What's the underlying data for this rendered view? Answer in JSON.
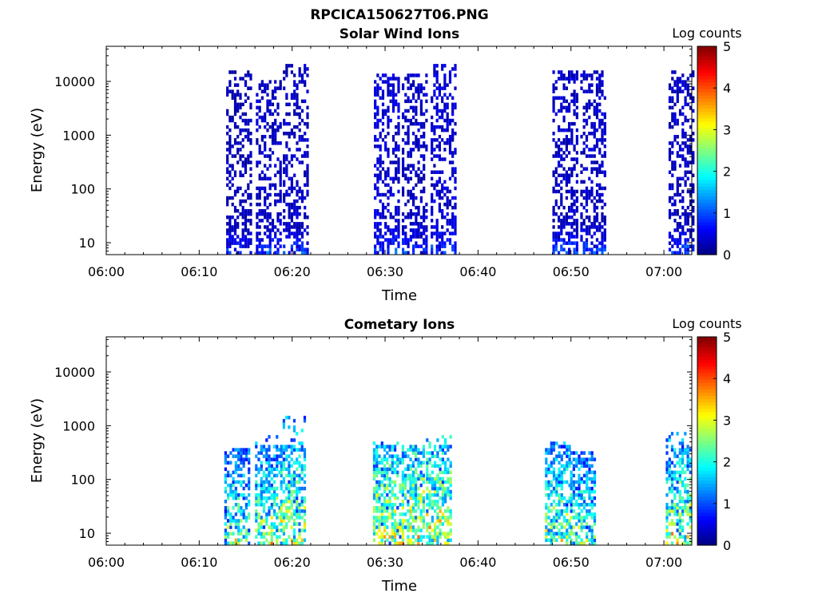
{
  "figure": {
    "title": "RPCICA150627T06.PNG"
  },
  "colormap": [
    "#00007f",
    "#0000ff",
    "#007fff",
    "#00ffff",
    "#7fff7f",
    "#ffff00",
    "#ff7f00",
    "#ff0000",
    "#7f0000"
  ],
  "chart_data": [
    {
      "type": "heatmap",
      "title": "Solar Wind Ions",
      "xlabel": "Time",
      "ylabel": "Energy (eV)",
      "x_ticks": [
        "06:00",
        "06:10",
        "06:20",
        "06:30",
        "06:40",
        "06:50",
        "07:00"
      ],
      "x_range_minutes": [
        0,
        63
      ],
      "y_scale": "log",
      "y_ticks": [
        "10",
        "100",
        "1000",
        "10000"
      ],
      "y_range": [
        6,
        45000
      ],
      "colorbar": {
        "label": "Log counts",
        "ticks": [
          "0",
          "1",
          "2",
          "3",
          "4",
          "5"
        ],
        "range": [
          0,
          5
        ]
      },
      "bursts": [
        {
          "t": 14.2,
          "emax": 15000,
          "level": 0.4
        },
        {
          "t": 17.4,
          "emax": 10000,
          "level": 0.5
        },
        {
          "t": 20.3,
          "emax": 20000,
          "level": 0.5
        },
        {
          "t": 30.1,
          "emax": 12000,
          "level": 0.6
        },
        {
          "t": 33.1,
          "emax": 12000,
          "level": 0.5
        },
        {
          "t": 36.2,
          "emax": 20000,
          "level": 0.6
        },
        {
          "t": 49.3,
          "emax": 15000,
          "level": 0.5
        },
        {
          "t": 52.3,
          "emax": 15000,
          "level": 0.5
        },
        {
          "t": 61.8,
          "emax": 15000,
          "level": 0.5
        }
      ]
    },
    {
      "type": "heatmap",
      "title": "Cometary Ions",
      "xlabel": "Time",
      "ylabel": "Energy (eV)",
      "x_ticks": [
        "06:00",
        "06:10",
        "06:20",
        "06:30",
        "06:40",
        "06:50",
        "07:00"
      ],
      "x_range_minutes": [
        0,
        63
      ],
      "y_scale": "log",
      "y_ticks": [
        "10",
        "100",
        "1000",
        "10000"
      ],
      "y_range": [
        6,
        45000
      ],
      "colorbar": {
        "label": "Log counts",
        "ticks": [
          "0",
          "1",
          "2",
          "3",
          "4",
          "5"
        ],
        "range": [
          0,
          5
        ]
      },
      "bursts": [
        {
          "t": 14.0,
          "emax": 350,
          "level": 1.5
        },
        {
          "t": 17.3,
          "emax": 600,
          "level": 1.8
        },
        {
          "t": 20.0,
          "emax": 1500,
          "level": 2.0
        },
        {
          "t": 30.0,
          "emax": 450,
          "level": 2.2
        },
        {
          "t": 32.8,
          "emax": 400,
          "level": 2.4
        },
        {
          "t": 35.7,
          "emax": 600,
          "level": 2.3
        },
        {
          "t": 48.5,
          "emax": 450,
          "level": 1.8
        },
        {
          "t": 51.2,
          "emax": 300,
          "level": 1.5
        },
        {
          "t": 61.5,
          "emax": 700,
          "level": 2.0
        }
      ]
    }
  ]
}
